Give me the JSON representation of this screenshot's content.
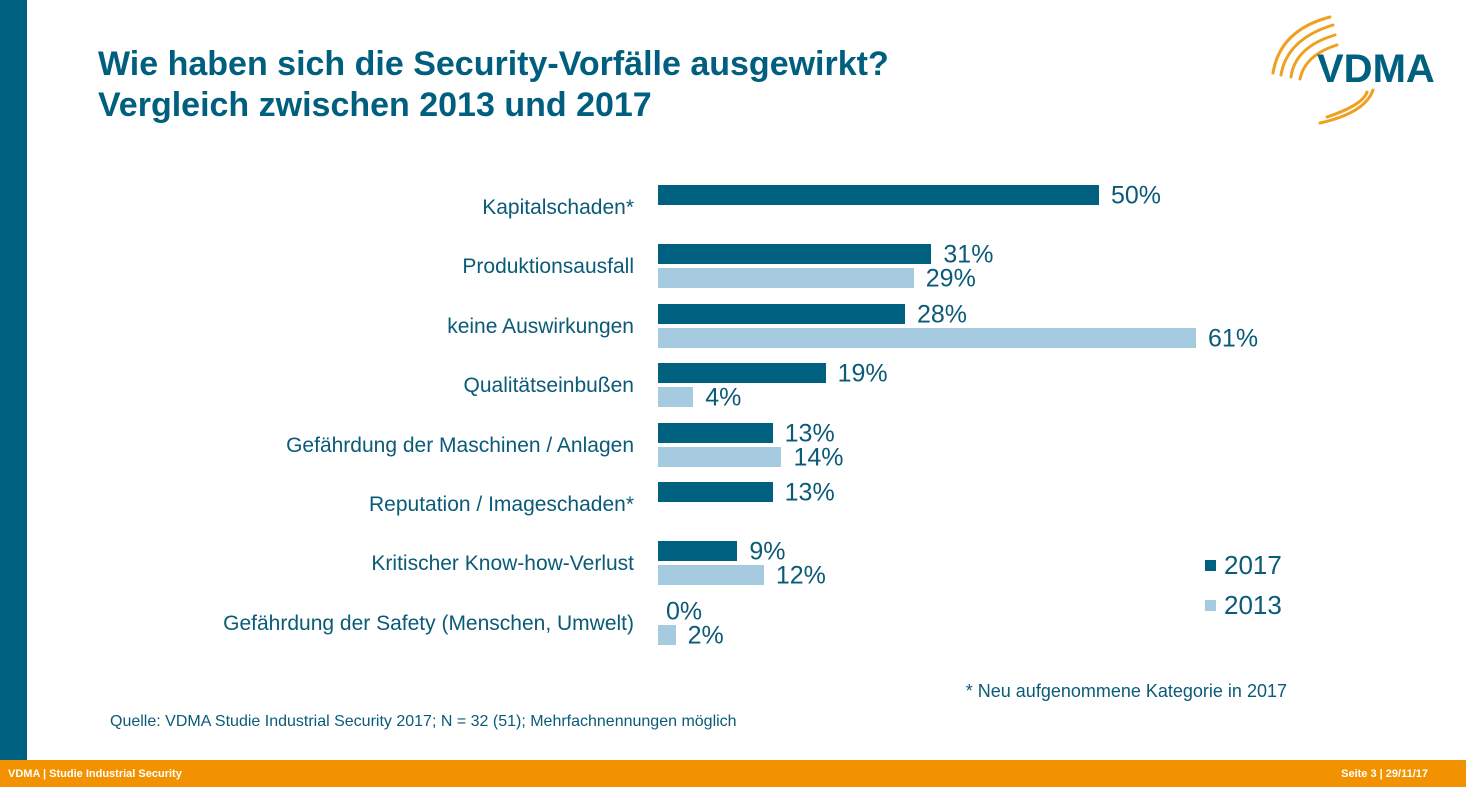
{
  "title_line1": "Wie haben sich die Security-Vorfälle ausgewirkt?",
  "title_line2": "Vergleich zwischen 2013 und 2017",
  "logo_text": "VDMA",
  "colors": {
    "accent": "#00607f",
    "series_2017": "#00607f",
    "series_2013": "#a6cbe0",
    "footer": "#f39200",
    "logo_arcs": "#f0a020"
  },
  "chart_data": {
    "type": "bar",
    "orientation": "horizontal",
    "categories": [
      "Kapitalschaden*",
      "Produktionsausfall",
      "keine Auswirkungen",
      "Qualitätseinbußen",
      "Gefährdung der Maschinen / Anlagen",
      "Reputation / Imageschaden*",
      "Kritischer Know-how-Verlust",
      "Gefährdung der Safety (Menschen, Umwelt)"
    ],
    "series": [
      {
        "name": "2017",
        "values": [
          50,
          31,
          28,
          19,
          13,
          13,
          9,
          0
        ],
        "labels": [
          "50%",
          "31%",
          "28%",
          "19%",
          "13%",
          "13%",
          "9%",
          "0%"
        ]
      },
      {
        "name": "2013",
        "values": [
          null,
          29,
          61,
          4,
          14,
          null,
          12,
          2
        ],
        "labels": [
          null,
          "29%",
          "61%",
          "4%",
          "14%",
          null,
          "12%",
          "2%"
        ]
      }
    ],
    "unit": "%",
    "xlim": [
      0,
      61
    ],
    "grid": false,
    "legend": "bottom-right"
  },
  "footnote": "* Neu aufgenommene Kategorie in 2017",
  "source": "Quelle: VDMA Studie Industrial Security 2017; N = 32 (51); Mehrfachnennungen möglich",
  "footer": {
    "left": "VDMA | Studie Industrial Security",
    "right": "Seite 3 | 29/11/17"
  }
}
